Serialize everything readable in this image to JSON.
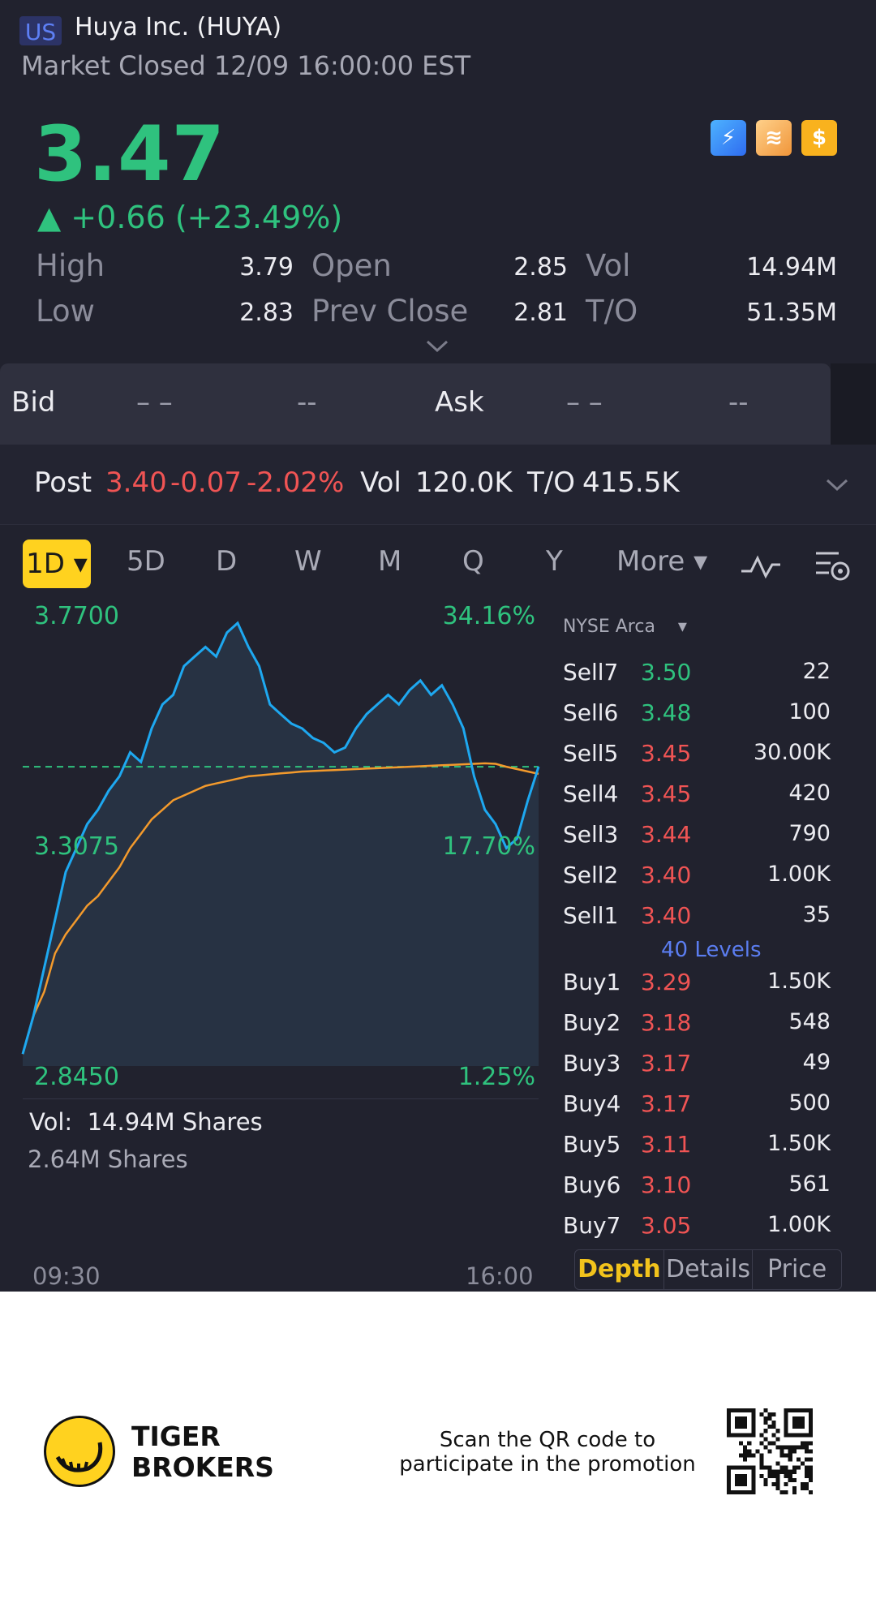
{
  "header": {
    "market": "US",
    "name": "Huya Inc. (HUYA)",
    "status": "Market Closed 12/09 16:00:00 EST",
    "price": "3.47",
    "change": "▲ +0.66 (+23.49%)",
    "icons": [
      "lightning-icon",
      "stack-icon",
      "dollar-icon"
    ]
  },
  "quote": {
    "high_label": "High",
    "high": "3.79",
    "low_label": "Low",
    "low": "2.83",
    "open_label": "Open",
    "open": "2.85",
    "prev_label": "Prev Close",
    "prev": "2.81",
    "vol_label": "Vol",
    "vol": "14.94M",
    "to_label": "T/O",
    "to": "51.35M"
  },
  "bidask": {
    "bid_label": "Bid",
    "bid_price": "– –",
    "bid_size": "--",
    "ask_label": "Ask",
    "ask_price": "– –",
    "ask_size": "--"
  },
  "post": {
    "label": "Post",
    "price": "3.40",
    "change": "-0.07",
    "pct": "-2.02%",
    "vol_label": "Vol",
    "vol": "120.0K",
    "to_label": "T/O",
    "to": "415.5K"
  },
  "tabs": [
    "1D",
    "5D",
    "D",
    "W",
    "M",
    "Q",
    "Y",
    "More"
  ],
  "chart_labels": {
    "max_price": "3.7700",
    "mid_price": "3.3075",
    "min_price": "2.8450",
    "max_pct": "34.16%",
    "mid_pct": "17.70%",
    "min_pct": "1.25%",
    "vol_label": "Vol:",
    "vol_value": "14.94M Shares",
    "vol_max": "2.64M Shares",
    "time_start": "09:30",
    "time_end": "16:00"
  },
  "chart_data": {
    "type": "line",
    "ylim": [
      2.845,
      3.77
    ],
    "reference_price": 3.47,
    "series": [
      {
        "values": [
          2.87,
          2.95,
          3.05,
          3.15,
          3.25,
          3.3,
          3.35,
          3.38,
          3.42,
          3.45,
          3.5,
          3.48,
          3.55,
          3.6,
          3.62,
          3.68,
          3.7,
          3.72,
          3.7,
          3.75,
          3.77,
          3.72,
          3.68,
          3.6,
          3.58,
          3.56,
          3.55,
          3.53,
          3.52,
          3.5,
          3.51,
          3.55,
          3.58,
          3.6,
          3.62,
          3.6,
          3.63,
          3.65,
          3.62,
          3.64,
          3.6,
          3.55,
          3.45,
          3.38,
          3.35,
          3.3,
          3.32,
          3.4,
          3.47
        ]
      },
      {
        "values": [
          2.87,
          2.95,
          3.0,
          3.08,
          3.12,
          3.15,
          3.18,
          3.2,
          3.23,
          3.26,
          3.3,
          3.33,
          3.36,
          3.38,
          3.4,
          3.41,
          3.42,
          3.43,
          3.435,
          3.44,
          3.445,
          3.45,
          3.452,
          3.454,
          3.456,
          3.458,
          3.46,
          3.461,
          3.462,
          3.463,
          3.464,
          3.465,
          3.466,
          3.467,
          3.468,
          3.469,
          3.47,
          3.471,
          3.472,
          3.473,
          3.474,
          3.475,
          3.476,
          3.477,
          3.476,
          3.47,
          3.465,
          3.46,
          3.455
        ]
      }
    ]
  },
  "orderbook": {
    "exchange": "NYSE Arca",
    "sells": [
      {
        "label": "Sell7",
        "price": "3.50",
        "size": "22",
        "color": "#2fc27e"
      },
      {
        "label": "Sell6",
        "price": "3.48",
        "size": "100",
        "color": "#2fc27e"
      },
      {
        "label": "Sell5",
        "price": "3.45",
        "size": "30.00K",
        "color": "#f05454"
      },
      {
        "label": "Sell4",
        "price": "3.45",
        "size": "420",
        "color": "#f05454"
      },
      {
        "label": "Sell3",
        "price": "3.44",
        "size": "790",
        "color": "#f05454"
      },
      {
        "label": "Sell2",
        "price": "3.40",
        "size": "1.00K",
        "color": "#f05454"
      },
      {
        "label": "Sell1",
        "price": "3.40",
        "size": "35",
        "color": "#f05454"
      }
    ],
    "levels": "40 Levels",
    "buys": [
      {
        "label": "Buy1",
        "price": "3.29",
        "size": "1.50K",
        "color": "#f05454"
      },
      {
        "label": "Buy2",
        "price": "3.18",
        "size": "548",
        "color": "#f05454"
      },
      {
        "label": "Buy3",
        "price": "3.17",
        "size": "49",
        "color": "#f05454"
      },
      {
        "label": "Buy4",
        "price": "3.17",
        "size": "500",
        "color": "#f05454"
      },
      {
        "label": "Buy5",
        "price": "3.11",
        "size": "1.50K",
        "color": "#f05454"
      },
      {
        "label": "Buy6",
        "price": "3.10",
        "size": "561",
        "color": "#f05454"
      },
      {
        "label": "Buy7",
        "price": "3.05",
        "size": "1.00K",
        "color": "#f05454"
      }
    ],
    "depth_tabs": [
      "Depth",
      "Details",
      "Price"
    ]
  },
  "footer": {
    "brand_line1": "TIGER",
    "brand_line2": "BROKERS",
    "promo_line1": "Scan the QR code to",
    "promo_line2": "participate in the promotion"
  }
}
